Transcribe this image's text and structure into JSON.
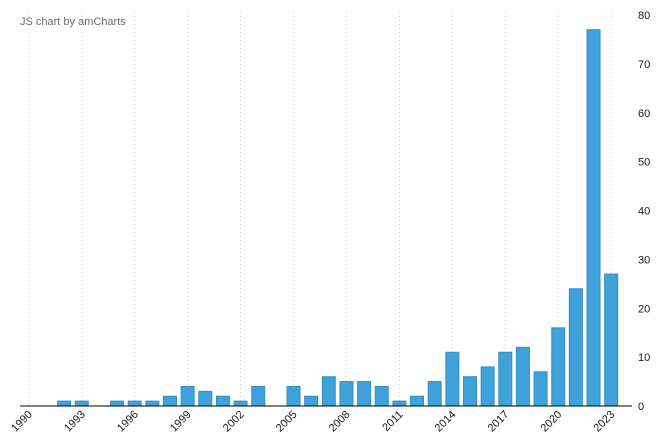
{
  "watermark": {
    "label": "JS chart by amCharts"
  },
  "chart_data": {
    "type": "bar",
    "title": "",
    "categories": [
      "1990",
      "1991",
      "1992",
      "1993",
      "1994",
      "1995",
      "1996",
      "1997",
      "1998",
      "1999",
      "2000",
      "2001",
      "2002",
      "2003",
      "2004",
      "2005",
      "2006",
      "2007",
      "2008",
      "2009",
      "2010",
      "2011",
      "2012",
      "2013",
      "2014",
      "2015",
      "2016",
      "2017",
      "2018",
      "2019",
      "2020",
      "2021",
      "2022",
      "2023"
    ],
    "values": [
      0,
      0,
      1,
      1,
      0,
      1,
      1,
      1,
      2,
      4,
      3,
      2,
      1,
      4,
      0,
      4,
      2,
      6,
      5,
      5,
      4,
      1,
      2,
      5,
      11,
      6,
      8,
      11,
      12,
      7,
      16,
      24,
      77,
      27
    ],
    "xlabel": "",
    "ylabel": "",
    "ylim": [
      0,
      80
    ],
    "y_ticks": [
      0,
      10,
      20,
      30,
      40,
      50,
      60,
      70,
      80
    ],
    "x_tick_labels": [
      "1990",
      "1993",
      "1996",
      "1999",
      "2002",
      "2005",
      "2008",
      "2011",
      "2014",
      "2017",
      "2020",
      "2023"
    ],
    "x_label_rotation": -45,
    "y_axis_position": "right",
    "legend": "none",
    "grid": {
      "vertical": true,
      "horizontal": false,
      "style": "dotted",
      "color": "#c9c9c9"
    },
    "bar_color": "#3fa2da",
    "bar_stroke_color": "#3590c4",
    "axis_line_color": "#000000",
    "label_color": "#1a1a1a"
  }
}
